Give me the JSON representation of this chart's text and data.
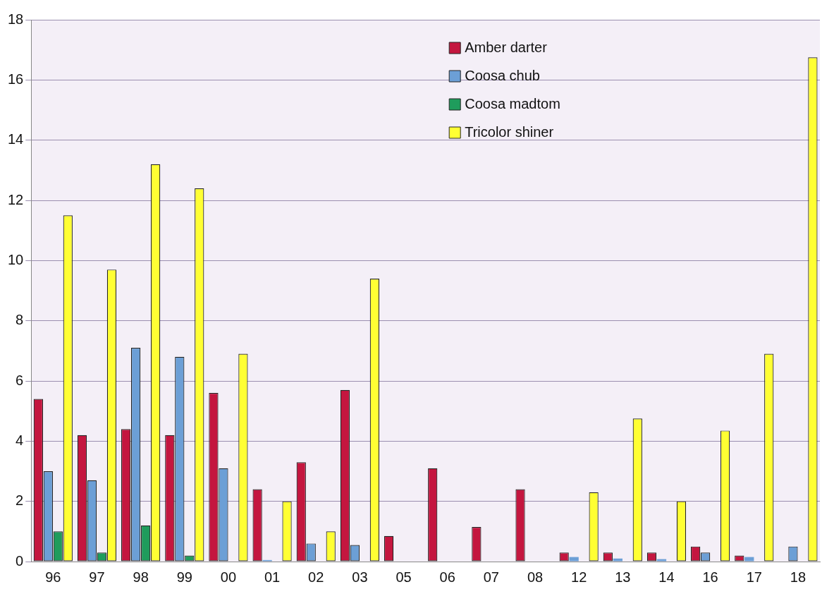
{
  "chart_data": {
    "type": "bar",
    "categories": [
      "96",
      "97",
      "98",
      "99",
      "00",
      "01",
      "02",
      "03",
      "05",
      "06",
      "07",
      "08",
      "12",
      "13",
      "14",
      "16",
      "17",
      "18"
    ],
    "series": [
      {
        "name": "Amber darter",
        "color": "#c4163f",
        "values": [
          5.4,
          4.2,
          4.4,
          4.2,
          5.6,
          2.4,
          3.3,
          5.7,
          0.85,
          3.1,
          1.15,
          2.4,
          0.3,
          0.3,
          0.3,
          0.5,
          0.2,
          0
        ]
      },
      {
        "name": "Coosa chub",
        "color": "#6c9fd6",
        "values": [
          3.0,
          2.7,
          7.1,
          6.8,
          3.1,
          0.05,
          0.6,
          0.55,
          0,
          0,
          0,
          0,
          0.15,
          0.1,
          0.08,
          0.3,
          0.15,
          0.5
        ]
      },
      {
        "name": "Coosa madtom",
        "color": "#1f9c5c",
        "values": [
          1.0,
          0.3,
          1.2,
          0.2,
          0,
          0,
          0,
          0,
          0,
          0,
          0,
          0,
          0,
          0,
          0,
          0,
          0,
          0
        ]
      },
      {
        "name": "Tricolor shiner",
        "color": "#ffff33",
        "values": [
          11.5,
          9.7,
          13.2,
          12.4,
          6.9,
          2.0,
          1.0,
          9.4,
          0,
          0,
          0,
          0,
          2.3,
          4.75,
          2.0,
          4.35,
          6.9,
          16.75
        ]
      }
    ],
    "ylim": [
      0,
      18
    ],
    "yticks": [
      0,
      2,
      4,
      6,
      8,
      10,
      12,
      14,
      16,
      18
    ],
    "grid": "y",
    "legend": "top right"
  }
}
